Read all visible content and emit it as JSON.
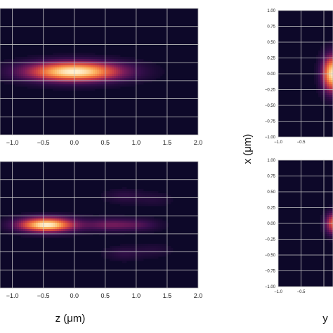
{
  "colormap": {
    "name": "inferno",
    "background": "#0d0829",
    "stops": [
      "#0d0829",
      "#3a0f4f",
      "#7a1c5c",
      "#c43a4a",
      "#ef6d3c",
      "#fcb763",
      "#fff5d6"
    ]
  },
  "chart_data": [
    {
      "id": "top-left",
      "type": "heatmap",
      "x_ticks": [
        "−1.0",
        "−0.5",
        "0.0",
        "0.5",
        "1.0",
        "1.5",
        "2.0"
      ],
      "x_range": [
        -1.2,
        2.0
      ],
      "y_range": [
        -1.0,
        1.0
      ],
      "grid": true,
      "spots": [
        {
          "x0": 0.0,
          "y0": 0.0,
          "sx": 0.55,
          "sy": 0.11,
          "amp": 1.0
        }
      ]
    },
    {
      "id": "bottom-left",
      "type": "heatmap",
      "x_ticks": [
        "−1.0",
        "−0.5",
        "0.0",
        "0.5",
        "1.0",
        "1.5",
        "2.0"
      ],
      "x_range": [
        -1.2,
        2.0
      ],
      "y_range": [
        -1.0,
        1.0
      ],
      "grid": true,
      "xlabel": "z (μm)",
      "spots": [
        {
          "x0": -0.45,
          "y0": 0.0,
          "sx": 0.32,
          "sy": 0.08,
          "amp": 1.0
        },
        {
          "x0": 0.55,
          "y0": 0.0,
          "sx": 0.28,
          "sy": 0.07,
          "amp": 0.28
        },
        {
          "x0": 1.05,
          "y0": 0.0,
          "sx": 0.25,
          "sy": 0.07,
          "amp": 0.18
        },
        {
          "x0": 0.8,
          "y0": 0.45,
          "sx": 0.22,
          "sy": 0.08,
          "amp": 0.12
        },
        {
          "x0": 0.8,
          "y0": -0.45,
          "sx": 0.22,
          "sy": 0.08,
          "amp": 0.12
        },
        {
          "x0": 1.3,
          "y0": 0.4,
          "sx": 0.2,
          "sy": 0.08,
          "amp": 0.08
        },
        {
          "x0": 1.3,
          "y0": -0.4,
          "sx": 0.2,
          "sy": 0.08,
          "amp": 0.08
        }
      ]
    },
    {
      "id": "top-right",
      "type": "heatmap",
      "x_ticks": [
        "−1.0",
        "−0.5"
      ],
      "x_tick_values": [
        -1.0,
        -0.5
      ],
      "y_ticks": [
        "1.00",
        "0.75",
        "0.50",
        "0.25",
        "0.00",
        "−0.25",
        "−0.50",
        "−0.75",
        "−1.00"
      ],
      "x_range": [
        -1.0,
        0.2
      ],
      "y_range": [
        -1.0,
        1.0
      ],
      "grid": true,
      "spots": [
        {
          "x0": 0.18,
          "y0": 0.0,
          "sx": 0.15,
          "sy": 0.2,
          "amp": 0.95
        }
      ]
    },
    {
      "id": "bottom-right",
      "type": "heatmap",
      "x_ticks": [
        "−1.0",
        "−0.5"
      ],
      "x_tick_values": [
        -1.0,
        -0.5
      ],
      "y_ticks": [
        "1.00",
        "0.75",
        "0.50",
        "0.25",
        "0.00",
        "−0.25",
        "−0.50",
        "−0.75",
        "−1.00"
      ],
      "x_range": [
        -1.0,
        0.2
      ],
      "y_range": [
        -1.0,
        1.0
      ],
      "grid": true,
      "xlabel": "y",
      "spots": [
        {
          "x0": 0.2,
          "y0": 0.0,
          "sx": 0.12,
          "sy": 0.12,
          "amp": 0.6
        }
      ]
    }
  ],
  "right_ylabel": "x (μm)"
}
